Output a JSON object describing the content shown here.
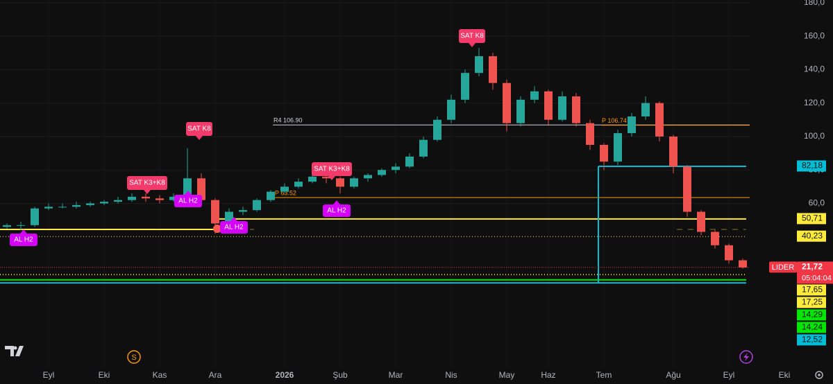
{
  "chart_data": {
    "type": "candlestick",
    "categories": [
      null,
      null,
      null,
      "Eyl",
      null,
      null,
      null,
      "Eki",
      null,
      null,
      null,
      "Kas",
      null,
      null,
      null,
      "Ara",
      null,
      null,
      null,
      null,
      "2026",
      null,
      null,
      null,
      "Şub",
      null,
      null,
      null,
      "Mar",
      null,
      null,
      null,
      "Nis",
      null,
      null,
      null,
      "May",
      null,
      null,
      "Haz",
      null,
      null,
      null,
      "Tem",
      null,
      null,
      null,
      null,
      "Ağu",
      null,
      null,
      null,
      "Eyl",
      null,
      null,
      null,
      "Eki"
    ],
    "series": [
      {
        "up_color": "#26a69a",
        "down_color": "#ef5350",
        "values": [
          [
            46,
            48,
            45,
            47
          ],
          [
            47,
            49,
            44,
            47
          ],
          [
            47,
            58,
            46,
            57
          ],
          [
            57,
            60,
            56,
            58
          ],
          [
            58,
            60,
            57,
            58
          ],
          [
            58,
            61,
            57,
            59
          ],
          [
            59,
            61,
            58,
            60
          ],
          [
            60,
            62,
            59,
            61
          ],
          [
            61,
            64,
            60,
            62
          ],
          [
            62,
            66,
            61,
            64
          ],
          [
            64,
            66,
            61,
            63
          ],
          [
            63,
            65,
            60,
            62
          ],
          [
            62,
            66,
            61,
            64
          ],
          [
            64,
            93,
            63,
            75
          ],
          [
            75,
            78,
            60,
            62
          ],
          [
            62,
            63,
            42,
            48
          ],
          [
            48,
            57,
            46,
            55
          ],
          [
            55,
            58,
            53,
            56
          ],
          [
            56,
            63,
            55,
            62
          ],
          [
            62,
            68,
            61,
            67
          ],
          [
            67,
            72,
            66,
            70
          ],
          [
            70,
            75,
            69,
            73
          ],
          [
            73,
            78,
            72,
            76
          ],
          [
            76,
            77,
            72,
            75
          ],
          [
            75,
            76,
            66,
            70
          ],
          [
            70,
            76,
            69,
            75
          ],
          [
            75,
            78,
            73,
            77
          ],
          [
            77,
            81,
            76,
            80
          ],
          [
            80,
            84,
            78,
            82
          ],
          [
            82,
            90,
            81,
            88
          ],
          [
            88,
            100,
            87,
            98
          ],
          [
            98,
            112,
            97,
            110
          ],
          [
            110,
            125,
            108,
            122
          ],
          [
            122,
            140,
            120,
            138
          ],
          [
            138,
            153,
            136,
            148
          ],
          [
            148,
            150,
            128,
            132
          ],
          [
            132,
            134,
            103,
            108
          ],
          [
            108,
            124,
            106,
            122
          ],
          [
            122,
            130,
            120,
            127
          ],
          [
            127,
            128,
            107,
            110
          ],
          [
            110,
            127,
            109,
            124
          ],
          [
            124,
            126,
            106,
            108
          ],
          [
            108,
            110,
            92,
            95
          ],
          [
            95,
            96,
            80,
            85
          ],
          [
            85,
            104,
            83,
            102
          ],
          [
            102,
            114,
            100,
            112
          ],
          [
            112,
            124,
            110,
            120
          ],
          [
            120,
            121,
            97,
            100
          ],
          [
            100,
            101,
            78,
            82
          ],
          [
            82,
            83,
            52,
            55
          ],
          [
            55,
            56,
            41,
            43
          ],
          [
            43,
            44,
            33,
            35
          ],
          [
            35,
            36,
            24,
            26
          ],
          [
            26,
            27,
            21,
            21.72
          ],
          null,
          null,
          null
        ]
      }
    ],
    "ylim": [
      -38,
      181.6
    ],
    "yticks": [
      {
        "value": 60,
        "label": "60,0"
      },
      {
        "value": 80,
        "label": "80,0"
      },
      {
        "value": 100,
        "label": "100,0"
      },
      {
        "value": 120,
        "label": "120,0"
      },
      {
        "value": 140,
        "label": "140,0"
      },
      {
        "value": 160,
        "label": "160,0"
      },
      {
        "value": 180,
        "label": "180,0"
      }
    ],
    "grid": true,
    "levels": [
      {
        "label": "R4 106.90",
        "value": 106.9,
        "color": "#d1d4dc"
      },
      {
        "label": "P 106.74",
        "value": 106.74,
        "color": "#ff9800"
      },
      {
        "label": "P 63.52",
        "value": 63.52,
        "color": "#ff9800"
      }
    ],
    "last_price": {
      "symbol": "LIDER",
      "label": "21,72",
      "value": 21.72,
      "countdown": "05:04:04",
      "color": "#f23645"
    },
    "price_tags": [
      {
        "label": "82,18",
        "value": 82.18,
        "color": "#00bcd4"
      },
      {
        "label": "50,71",
        "value": 50.71,
        "color": "#ffeb3b"
      },
      {
        "label": "40,23",
        "value": 40.23,
        "color": "#ffeb3b"
      },
      {
        "label": "17,65",
        "value": 17.65,
        "color": "#ffeb3b"
      },
      {
        "label": "17,25",
        "value": 17.25,
        "color": "#ffeb3b"
      },
      {
        "label": "14,29",
        "value": 14.29,
        "color": "#00e600"
      },
      {
        "label": "14,24",
        "value": 14.24,
        "color": "#00e600"
      },
      {
        "label": "12,52",
        "value": 12.52,
        "color": "#00bcd4"
      }
    ],
    "signals": [
      "SAT K8",
      "SAT K8",
      "SAT K3+K8",
      "SAT K3+K8",
      "AL H2",
      "AL H2",
      "AL H2",
      "AL H2"
    ]
  }
}
